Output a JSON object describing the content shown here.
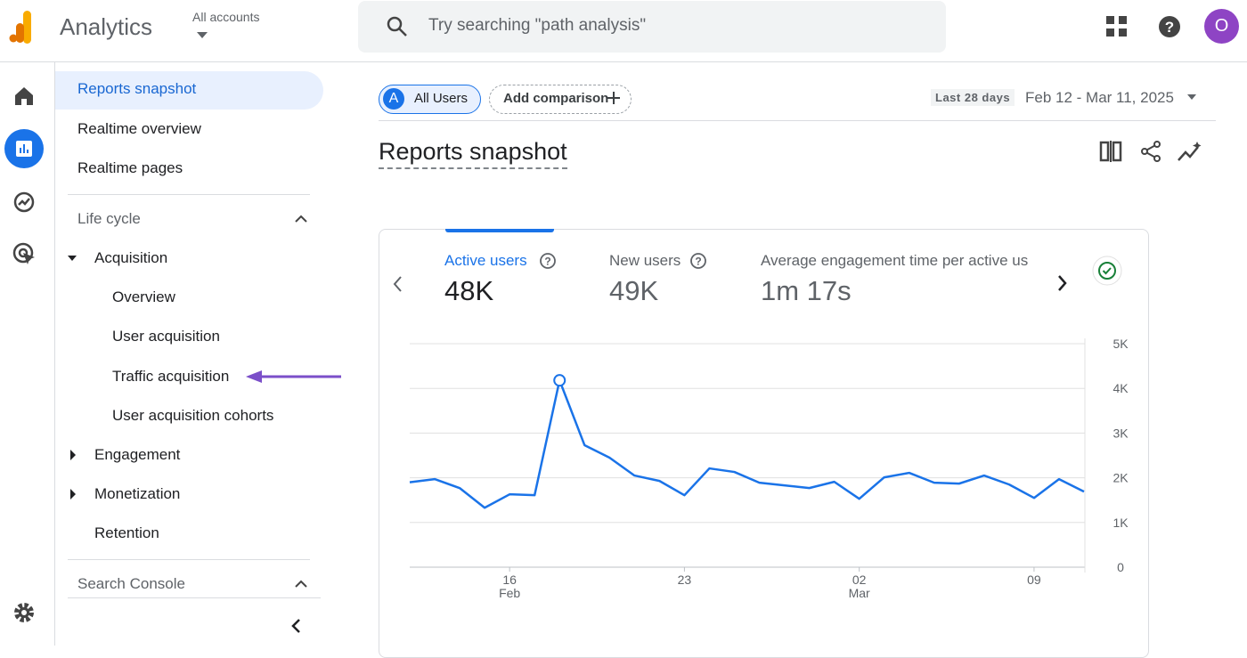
{
  "header": {
    "product": "Analytics",
    "account": "All accounts",
    "search": "Try searching \"path analysis\"",
    "avatar": "O"
  },
  "sidebar": {
    "top": [
      "Reports snapshot",
      "Realtime overview",
      "Realtime pages"
    ],
    "lifecycle": {
      "title": "Life cycle",
      "acquisition": {
        "title": "Acquisition",
        "items": [
          "Overview",
          "User acquisition",
          "Traffic acquisition",
          "User acquisition cohorts"
        ]
      },
      "others": [
        "Engagement",
        "Monetization",
        "Retention"
      ]
    },
    "search_console": "Search Console"
  },
  "toolbar": {
    "segment_badge": "A",
    "segment": "All Users",
    "add_comparison": "Add comparison",
    "range_label": "Last 28 days",
    "date_range": "Feb 12 - Mar 11, 2025"
  },
  "page_title": "Reports snapshot",
  "metrics": [
    {
      "label": "Active users",
      "value": "48K"
    },
    {
      "label": "New users",
      "value": "49K"
    },
    {
      "label": "Average engagement time per active us",
      "value": "1m 17s"
    }
  ],
  "chart_data": {
    "type": "line",
    "color": "#1a73e8",
    "grid": true,
    "categories": [
      null,
      null,
      null,
      null,
      "16",
      null,
      null,
      null,
      null,
      null,
      null,
      "23",
      null,
      null,
      null,
      null,
      null,
      null,
      "02",
      null,
      null,
      null,
      null,
      null,
      null,
      "09",
      null,
      null
    ],
    "category_months": [
      null,
      null,
      null,
      null,
      "Feb",
      null,
      null,
      null,
      null,
      null,
      null,
      null,
      null,
      null,
      null,
      null,
      null,
      null,
      "Mar",
      null,
      null,
      null,
      null,
      null,
      null,
      null,
      null,
      null
    ],
    "values": [
      1900,
      1970,
      1770,
      1330,
      1630,
      1610,
      4180,
      2730,
      2450,
      2050,
      1930,
      1610,
      2210,
      2130,
      1890,
      1830,
      1770,
      1910,
      1530,
      2010,
      2110,
      1890,
      1870,
      2050,
      1850,
      1550,
      1970,
      1690
    ],
    "ylim": [
      0,
      5000
    ],
    "yticks": [
      0,
      {
        "value": 1000,
        "label": "1K"
      },
      {
        "value": 2000,
        "label": "2K"
      },
      {
        "value": 3000,
        "label": "3K"
      },
      {
        "value": 4000,
        "label": "4K"
      },
      {
        "value": 5000,
        "label": "5K"
      }
    ]
  }
}
